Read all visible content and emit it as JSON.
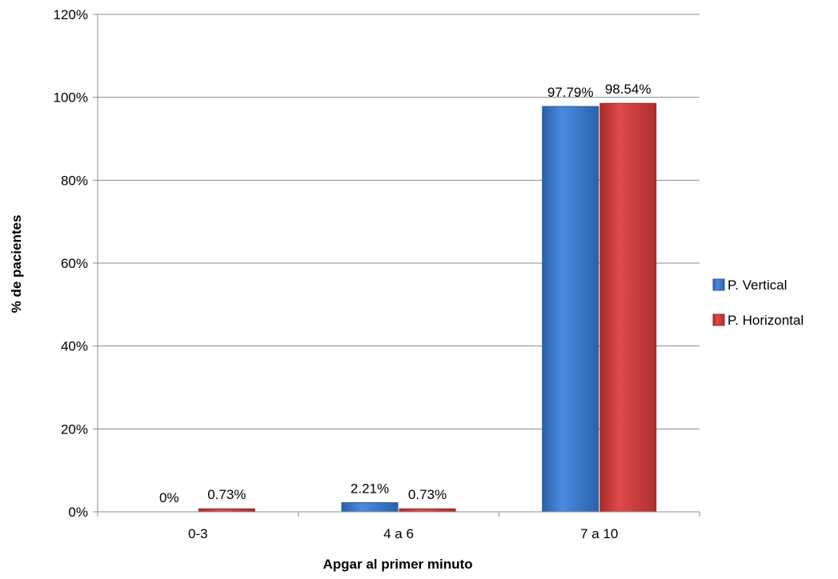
{
  "chart_data": {
    "type": "bar",
    "categories": [
      "0-3",
      "4 a 6",
      "7 a 10"
    ],
    "series": [
      {
        "name": "P. Vertical",
        "values": [
          0,
          2.21,
          97.79
        ],
        "labels": [
          "0%",
          "2.21%",
          "97.79%"
        ],
        "color": "#3a77c8"
      },
      {
        "name": "P. Horizontal",
        "values": [
          0.73,
          0.73,
          98.54
        ],
        "labels": [
          "0.73%",
          "0.73%",
          "98.54%"
        ],
        "color": "#c83a3a"
      }
    ],
    "xlabel": "Apgar al primer minuto",
    "ylabel": "% de pacientes",
    "ylim": [
      0,
      120
    ],
    "yticks": [
      0,
      20,
      40,
      60,
      80,
      100,
      120
    ],
    "ytick_labels": [
      "0%",
      "20%",
      "40%",
      "60%",
      "80%",
      "100%",
      "120%"
    ],
    "grid": true,
    "legend_position": "right"
  }
}
